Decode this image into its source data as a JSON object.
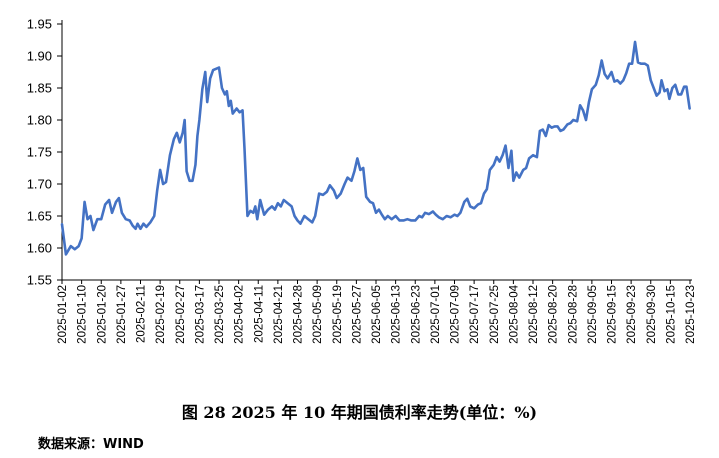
{
  "caption": "图 28 2025 年 10 年期国债利率走势(单位：%)",
  "source": "数据来源：WIND",
  "line_color": "#4472C4",
  "chart_data": {
    "type": "line",
    "ylim": [
      1.55,
      1.95
    ],
    "yticks": [
      "1.55",
      "1.60",
      "1.65",
      "1.70",
      "1.75",
      "1.80",
      "1.85",
      "1.90",
      "1.95"
    ],
    "xticks": [
      "2025-01-02",
      "2025-01-10",
      "2025-01-20",
      "2025-01-27",
      "2025-02-11",
      "2025-02-19",
      "2025-02-27",
      "2025-03-17",
      "2025-03-25",
      "2025-04-02",
      "2025-04-11",
      "2025-04-21",
      "2025-04-28",
      "2025-05-09",
      "2025-05-19",
      "2025-05-27",
      "2025-06-05",
      "2025-06-13",
      "2025-06-23",
      "2025-07-01",
      "2025-07-09",
      "2025-07-17",
      "2025-07-25",
      "2025-08-04",
      "2025-08-12",
      "2025-08-20",
      "2025-08-28",
      "2025-09-05",
      "2025-09-15",
      "2025-09-23",
      "2025-09-30",
      "2025-10-15",
      "2025-10-23"
    ],
    "grid": false,
    "series": [
      {
        "values": [
          [
            0,
            1.637
          ],
          [
            0.2,
            1.59
          ],
          [
            0.45,
            1.603
          ],
          [
            0.65,
            1.598
          ],
          [
            0.85,
            1.603
          ],
          [
            1.0,
            1.615
          ],
          [
            1.15,
            1.672
          ],
          [
            1.3,
            1.645
          ],
          [
            1.45,
            1.65
          ],
          [
            1.6,
            1.628
          ],
          [
            1.8,
            1.645
          ],
          [
            2.0,
            1.645
          ],
          [
            2.2,
            1.668
          ],
          [
            2.4,
            1.675
          ],
          [
            2.55,
            1.655
          ],
          [
            2.75,
            1.672
          ],
          [
            2.9,
            1.678
          ],
          [
            3.05,
            1.655
          ],
          [
            3.25,
            1.645
          ],
          [
            3.45,
            1.643
          ],
          [
            3.6,
            1.635
          ],
          [
            3.75,
            1.63
          ],
          [
            3.85,
            1.638
          ],
          [
            4.0,
            1.63
          ],
          [
            4.15,
            1.638
          ],
          [
            4.3,
            1.633
          ],
          [
            4.5,
            1.64
          ],
          [
            4.7,
            1.65
          ],
          [
            4.85,
            1.69
          ],
          [
            5.0,
            1.722
          ],
          [
            5.15,
            1.7
          ],
          [
            5.3,
            1.703
          ],
          [
            5.5,
            1.745
          ],
          [
            5.7,
            1.77
          ],
          [
            5.85,
            1.78
          ],
          [
            6.0,
            1.765
          ],
          [
            6.15,
            1.78
          ],
          [
            6.25,
            1.8
          ],
          [
            6.35,
            1.72
          ],
          [
            6.5,
            1.705
          ],
          [
            6.65,
            1.705
          ],
          [
            6.8,
            1.73
          ],
          [
            6.9,
            1.775
          ],
          [
            7.0,
            1.8
          ],
          [
            7.15,
            1.848
          ],
          [
            7.3,
            1.875
          ],
          [
            7.4,
            1.828
          ],
          [
            7.55,
            1.865
          ],
          [
            7.7,
            1.878
          ],
          [
            7.85,
            1.88
          ],
          [
            8.0,
            1.882
          ],
          [
            8.15,
            1.85
          ],
          [
            8.3,
            1.84
          ],
          [
            8.4,
            1.845
          ],
          [
            8.5,
            1.822
          ],
          [
            8.6,
            1.83
          ],
          [
            8.7,
            1.81
          ],
          [
            8.9,
            1.818
          ],
          [
            9.05,
            1.812
          ],
          [
            9.2,
            1.815
          ],
          [
            9.3,
            1.755
          ],
          [
            9.45,
            1.65
          ],
          [
            9.6,
            1.658
          ],
          [
            9.75,
            1.655
          ],
          [
            9.85,
            1.665
          ],
          [
            9.95,
            1.645
          ],
          [
            10.1,
            1.675
          ],
          [
            10.3,
            1.652
          ],
          [
            10.5,
            1.66
          ],
          [
            10.7,
            1.665
          ],
          [
            10.85,
            1.66
          ],
          [
            11.0,
            1.67
          ],
          [
            11.15,
            1.665
          ],
          [
            11.3,
            1.675
          ],
          [
            11.5,
            1.67
          ],
          [
            11.7,
            1.665
          ],
          [
            11.85,
            1.65
          ],
          [
            12.0,
            1.643
          ],
          [
            12.15,
            1.638
          ],
          [
            12.35,
            1.65
          ],
          [
            12.55,
            1.645
          ],
          [
            12.75,
            1.64
          ],
          [
            12.9,
            1.65
          ],
          [
            13.1,
            1.685
          ],
          [
            13.3,
            1.683
          ],
          [
            13.5,
            1.688
          ],
          [
            13.65,
            1.698
          ],
          [
            13.85,
            1.69
          ],
          [
            14.0,
            1.678
          ],
          [
            14.2,
            1.685
          ],
          [
            14.4,
            1.7
          ],
          [
            14.55,
            1.71
          ],
          [
            14.75,
            1.705
          ],
          [
            14.9,
            1.72
          ],
          [
            15.05,
            1.74
          ],
          [
            15.2,
            1.722
          ],
          [
            15.35,
            1.725
          ],
          [
            15.5,
            1.68
          ],
          [
            15.7,
            1.672
          ],
          [
            15.85,
            1.67
          ],
          [
            16.0,
            1.655
          ],
          [
            16.15,
            1.66
          ],
          [
            16.3,
            1.652
          ],
          [
            16.45,
            1.645
          ],
          [
            16.6,
            1.65
          ],
          [
            16.8,
            1.645
          ],
          [
            17.0,
            1.65
          ],
          [
            17.2,
            1.643
          ],
          [
            17.4,
            1.643
          ],
          [
            17.6,
            1.645
          ],
          [
            17.8,
            1.643
          ],
          [
            18.0,
            1.643
          ],
          [
            18.2,
            1.65
          ],
          [
            18.35,
            1.648
          ],
          [
            18.5,
            1.655
          ],
          [
            18.7,
            1.653
          ],
          [
            18.9,
            1.657
          ],
          [
            19.05,
            1.652
          ],
          [
            19.2,
            1.648
          ],
          [
            19.4,
            1.645
          ],
          [
            19.6,
            1.65
          ],
          [
            19.8,
            1.648
          ],
          [
            20.0,
            1.652
          ],
          [
            20.15,
            1.65
          ],
          [
            20.3,
            1.655
          ],
          [
            20.5,
            1.672
          ],
          [
            20.65,
            1.677
          ],
          [
            20.8,
            1.665
          ],
          [
            21.0,
            1.662
          ],
          [
            21.2,
            1.668
          ],
          [
            21.35,
            1.67
          ],
          [
            21.5,
            1.685
          ],
          [
            21.65,
            1.692
          ],
          [
            21.8,
            1.722
          ],
          [
            22.0,
            1.73
          ],
          [
            22.15,
            1.742
          ],
          [
            22.3,
            1.735
          ],
          [
            22.45,
            1.745
          ],
          [
            22.6,
            1.76
          ],
          [
            22.75,
            1.725
          ],
          [
            22.9,
            1.752
          ],
          [
            23.0,
            1.705
          ],
          [
            23.15,
            1.718
          ],
          [
            23.3,
            1.71
          ],
          [
            23.5,
            1.722
          ],
          [
            23.65,
            1.725
          ],
          [
            23.8,
            1.74
          ],
          [
            24.0,
            1.745
          ],
          [
            24.2,
            1.742
          ],
          [
            24.35,
            1.783
          ],
          [
            24.5,
            1.785
          ],
          [
            24.65,
            1.775
          ],
          [
            24.8,
            1.792
          ],
          [
            24.95,
            1.788
          ],
          [
            25.1,
            1.79
          ],
          [
            25.25,
            1.79
          ],
          [
            25.4,
            1.783
          ],
          [
            25.55,
            1.785
          ],
          [
            25.75,
            1.793
          ],
          [
            25.9,
            1.795
          ],
          [
            26.05,
            1.8
          ],
          [
            26.25,
            1.798
          ],
          [
            26.4,
            1.823
          ],
          [
            26.55,
            1.815
          ],
          [
            26.7,
            1.8
          ],
          [
            26.85,
            1.828
          ],
          [
            27.0,
            1.848
          ],
          [
            27.2,
            1.855
          ],
          [
            27.35,
            1.87
          ],
          [
            27.5,
            1.893
          ],
          [
            27.65,
            1.872
          ],
          [
            27.8,
            1.865
          ],
          [
            28.0,
            1.875
          ],
          [
            28.15,
            1.86
          ],
          [
            28.3,
            1.862
          ],
          [
            28.45,
            1.857
          ],
          [
            28.6,
            1.862
          ],
          [
            28.75,
            1.873
          ],
          [
            28.9,
            1.888
          ],
          [
            29.05,
            1.888
          ],
          [
            29.2,
            1.922
          ],
          [
            29.35,
            1.89
          ],
          [
            29.5,
            1.888
          ],
          [
            29.7,
            1.888
          ],
          [
            29.85,
            1.885
          ],
          [
            30.0,
            1.862
          ],
          [
            30.15,
            1.85
          ],
          [
            30.3,
            1.838
          ],
          [
            30.45,
            1.843
          ],
          [
            30.55,
            1.862
          ],
          [
            30.7,
            1.845
          ],
          [
            30.85,
            1.848
          ],
          [
            30.95,
            1.833
          ],
          [
            31.1,
            1.85
          ],
          [
            31.25,
            1.855
          ],
          [
            31.4,
            1.84
          ],
          [
            31.55,
            1.84
          ],
          [
            31.7,
            1.852
          ],
          [
            31.82,
            1.852
          ],
          [
            31.98,
            1.818
          ]
        ]
      }
    ]
  }
}
